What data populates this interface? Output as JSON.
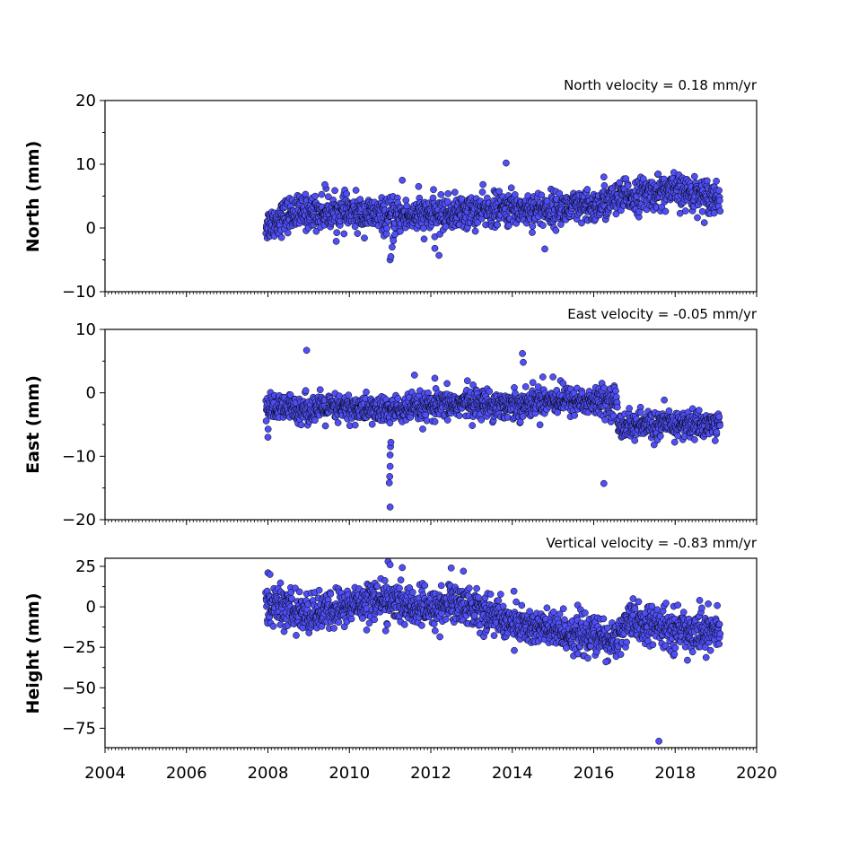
{
  "chart_data": [
    {
      "type": "scatter",
      "ylabel": "North (mm)",
      "annotation": "North velocity = 0.18 mm/yr",
      "xlim": [
        2004,
        2020
      ],
      "ylim": [
        -10,
        20
      ],
      "yticks": [
        -10,
        0,
        10,
        20
      ],
      "ytick_labels": [
        "−10",
        "0",
        "10",
        "20"
      ],
      "xticks": [
        2004,
        2006,
        2008,
        2010,
        2012,
        2014,
        2016,
        2018,
        2020
      ],
      "xtick_labels": [],
      "grid": false,
      "point_color": "#4f4ff5",
      "edge_color": "#000000",
      "series": [
        {
          "x_range": [
            2007.95,
            2019.1
          ],
          "trend_points": [
            [
              2008.0,
              0.5
            ],
            [
              2008.5,
              2.2
            ],
            [
              2009.0,
              2.5
            ],
            [
              2010.0,
              2.4
            ],
            [
              2011.0,
              1.8
            ],
            [
              2012.0,
              2.0
            ],
            [
              2013.0,
              2.6
            ],
            [
              2014.0,
              3.0
            ],
            [
              2015.0,
              3.0
            ],
            [
              2016.0,
              3.2
            ],
            [
              2016.5,
              4.5
            ],
            [
              2017.0,
              5.0
            ],
            [
              2017.5,
              5.6
            ],
            [
              2018.0,
              5.8
            ],
            [
              2019.1,
              4.8
            ]
          ],
          "noise_sd": 1.3,
          "outliers": [
            [
              2011.0,
              -5.0
            ],
            [
              2011.02,
              -4.5
            ],
            [
              2011.05,
              -3.0
            ],
            [
              2011.08,
              -2.0
            ],
            [
              2011.12,
              -1.0
            ],
            [
              2011.3,
              7.5
            ],
            [
              2011.7,
              6.5
            ],
            [
              2012.1,
              -3.2
            ],
            [
              2012.2,
              -4.3
            ],
            [
              2013.85,
              10.2
            ],
            [
              2014.8,
              -3.3
            ],
            [
              2009.4,
              6.8
            ],
            [
              2016.25,
              8.0
            ]
          ]
        }
      ]
    },
    {
      "type": "scatter",
      "ylabel": "East (mm)",
      "annotation": "East velocity = -0.05 mm/yr",
      "xlim": [
        2004,
        2020
      ],
      "ylim": [
        -20,
        10
      ],
      "yticks": [
        -20,
        -10,
        0,
        10
      ],
      "ytick_labels": [
        "−20",
        "−10",
        "0",
        "10"
      ],
      "xticks": [
        2004,
        2006,
        2008,
        2010,
        2012,
        2014,
        2016,
        2018,
        2020
      ],
      "xtick_labels": [],
      "grid": false,
      "point_color": "#4f4ff5",
      "edge_color": "#000000",
      "series": [
        {
          "x_range": [
            2007.95,
            2019.1
          ],
          "trend_points": [
            [
              2008.0,
              -2.5
            ],
            [
              2009.0,
              -2.5
            ],
            [
              2010.0,
              -2.5
            ],
            [
              2011.0,
              -2.8
            ],
            [
              2012.0,
              -2.3
            ],
            [
              2013.0,
              -1.5
            ],
            [
              2014.0,
              -2.0
            ],
            [
              2015.0,
              -1.0
            ],
            [
              2016.0,
              -1.5
            ],
            [
              2016.55,
              -1.2
            ],
            [
              2016.6,
              -5.0
            ],
            [
              2017.0,
              -5.2
            ],
            [
              2018.0,
              -5.0
            ],
            [
              2019.1,
              -5.0
            ]
          ],
          "noise_sd": 1.1,
          "outliers": [
            [
              2008.95,
              6.7
            ],
            [
              2014.25,
              6.2
            ],
            [
              2014.27,
              4.8
            ],
            [
              2011.0,
              -18.0
            ],
            [
              2010.98,
              -14.2
            ],
            [
              2010.99,
              -13.2
            ],
            [
              2011.0,
              -11.6
            ],
            [
              2011.0,
              -9.8
            ],
            [
              2011.01,
              -8.5
            ],
            [
              2011.02,
              -7.8
            ],
            [
              2016.25,
              -14.3
            ],
            [
              2011.6,
              2.8
            ],
            [
              2012.1,
              2.3
            ],
            [
              2012.9,
              1.9
            ],
            [
              2014.75,
              2.5
            ],
            [
              2015.0,
              2.5
            ],
            [
              2008.0,
              -7.0
            ]
          ]
        }
      ]
    },
    {
      "type": "scatter",
      "ylabel": "Height (mm)",
      "annotation": "Vertical velocity = -0.83 mm/yr",
      "xlim": [
        2004,
        2020
      ],
      "ylim": [
        -87,
        30
      ],
      "yticks": [
        -75,
        -50,
        -25,
        0,
        25
      ],
      "ytick_labels": [
        "−75",
        "−50",
        "−25",
        "0",
        "25"
      ],
      "xticks": [
        2004,
        2006,
        2008,
        2010,
        2012,
        2014,
        2016,
        2018,
        2020
      ],
      "xtick_labels": [
        "2004",
        "2006",
        "2008",
        "2010",
        "2012",
        "2014",
        "2016",
        "2018",
        "2020"
      ],
      "grid": false,
      "point_color": "#4f4ff5",
      "edge_color": "#000000",
      "series": [
        {
          "x_range": [
            2007.95,
            2019.1
          ],
          "trend_points": [
            [
              2008.0,
              2.0
            ],
            [
              2009.0,
              -5.0
            ],
            [
              2010.0,
              0.0
            ],
            [
              2010.5,
              5.0
            ],
            [
              2011.0,
              3.0
            ],
            [
              2012.0,
              -2.0
            ],
            [
              2012.5,
              3.0
            ],
            [
              2013.0,
              0.0
            ],
            [
              2014.0,
              -10.0
            ],
            [
              2015.0,
              -15.0
            ],
            [
              2016.0,
              -18.0
            ],
            [
              2016.5,
              -22.0
            ],
            [
              2016.8,
              -10.0
            ],
            [
              2017.5,
              -12.0
            ],
            [
              2018.0,
              -14.0
            ],
            [
              2019.1,
              -15.0
            ]
          ],
          "noise_sd": 6.0,
          "outliers": [
            [
              2010.95,
              28.0
            ],
            [
              2011.0,
              26.0
            ],
            [
              2012.5,
              24.0
            ],
            [
              2012.8,
              22.0
            ],
            [
              2008.0,
              21.0
            ],
            [
              2008.05,
              20.0
            ],
            [
              2017.6,
              -83.0
            ],
            [
              2018.3,
              -33.0
            ],
            [
              2016.3,
              -34.0
            ],
            [
              2018.6,
              4.0
            ]
          ]
        }
      ]
    }
  ]
}
